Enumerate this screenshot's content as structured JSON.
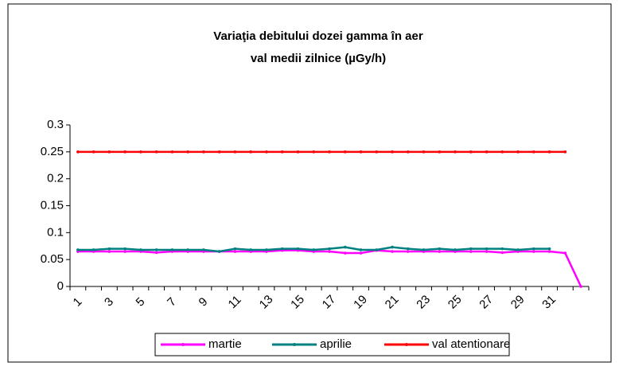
{
  "chart_data": {
    "type": "line",
    "title": [
      "Variaţia debitului dozei gamma în aer",
      "val medii zilnice (µGy/h)"
    ],
    "categories": [
      "1",
      null,
      "3",
      null,
      "5",
      null,
      "7",
      null,
      "9",
      null,
      "11",
      null,
      "13",
      null,
      "15",
      null,
      "17",
      null,
      "19",
      null,
      "21",
      null,
      "23",
      null,
      "25",
      null,
      "27",
      null,
      "29",
      null,
      "31",
      null,
      null
    ],
    "series": [
      {
        "name": "martie",
        "color": "#ff00ff",
        "values": [
          0.065,
          0.065,
          0.065,
          0.065,
          0.065,
          0.063,
          0.065,
          0.065,
          0.065,
          0.065,
          0.065,
          0.065,
          0.065,
          0.067,
          0.067,
          0.065,
          0.065,
          0.062,
          0.062,
          0.067,
          0.065,
          0.065,
          0.065,
          0.065,
          0.065,
          0.065,
          0.065,
          0.063,
          0.065,
          0.065,
          0.065,
          0.062,
          0
        ]
      },
      {
        "name": "aprilie",
        "color": "#008080",
        "values": [
          0.068,
          0.068,
          0.07,
          0.07,
          0.068,
          0.068,
          0.068,
          0.068,
          0.068,
          0.065,
          0.07,
          0.068,
          0.068,
          0.07,
          0.07,
          0.068,
          0.07,
          0.073,
          0.068,
          0.068,
          0.073,
          0.07,
          0.068,
          0.07,
          0.068,
          0.07,
          0.07,
          0.07,
          0.068,
          0.07,
          0.07,
          null,
          null
        ]
      },
      {
        "name": "val atentionare",
        "color": "#ff0000",
        "values": [
          0.25,
          0.25,
          0.25,
          0.25,
          0.25,
          0.25,
          0.25,
          0.25,
          0.25,
          0.25,
          0.25,
          0.25,
          0.25,
          0.25,
          0.25,
          0.25,
          0.25,
          0.25,
          0.25,
          0.25,
          0.25,
          0.25,
          0.25,
          0.25,
          0.25,
          0.25,
          0.25,
          0.25,
          0.25,
          0.25,
          0.25,
          0.25,
          null
        ]
      }
    ],
    "ylim": [
      0,
      0.3
    ],
    "yticks": [
      0,
      0.05,
      0.1,
      0.15,
      0.2,
      0.25,
      0.3
    ],
    "legend": "bottom"
  }
}
